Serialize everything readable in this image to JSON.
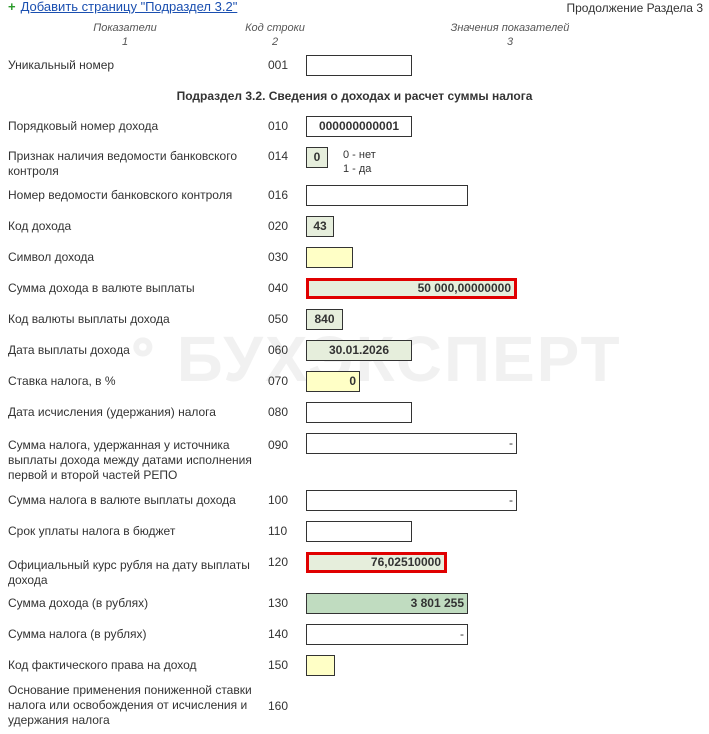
{
  "header": {
    "add_page_link": "Добавить страницу \"Подраздел 3.2\"",
    "continuation": "Продолжение Раздела 3"
  },
  "columns": [
    {
      "title": "Показатели",
      "num": "1"
    },
    {
      "title": "Код строки",
      "num": "2"
    },
    {
      "title": "Значения показателей",
      "num": "3"
    }
  ],
  "watermark": "ბ БУХЭКСПЕРТ",
  "unique": {
    "label": "Уникальный номер",
    "code": "001",
    "value": ""
  },
  "section_title": "Подраздел 3.2. Сведения о доходах и расчет суммы налога",
  "bank_hint": [
    "0 - нет",
    "1 - да"
  ],
  "rows": [
    {
      "label": "Порядковый номер дохода",
      "code": "010",
      "value": "000000000001",
      "fill": "white"
    },
    {
      "label": "Признак наличия ведомости банковского контроля",
      "code": "014",
      "value": "0",
      "fill": "green"
    },
    {
      "label": "Номер ведомости банковского контроля",
      "code": "016",
      "value": "",
      "fill": "white"
    },
    {
      "label": "Код дохода",
      "code": "020",
      "value": "43",
      "fill": "green"
    },
    {
      "label": "Символ дохода",
      "code": "030",
      "value": "",
      "fill": "yellow"
    },
    {
      "label": "Сумма дохода в валюте выплаты",
      "code": "040",
      "value": "50 000,00000000",
      "fill": "green",
      "highlighted": true
    },
    {
      "label": "Код валюты выплаты дохода",
      "code": "050",
      "value": "840",
      "fill": "green"
    },
    {
      "label": "Дата выплаты дохода",
      "code": "060",
      "value": "30.01.2026",
      "fill": "green"
    },
    {
      "label": "Ставка налога, в %",
      "code": "070",
      "value": "0",
      "fill": "yellow"
    },
    {
      "label": "Дата исчисления (удержания) налога",
      "code": "080",
      "value": "",
      "fill": "white"
    },
    {
      "label": "Сумма налога, удержанная у источника выплаты дохода между датами исполнения первой и второй частей РЕПО",
      "code": "090",
      "value": "-",
      "fill": "white"
    },
    {
      "label": "Сумма налога в валюте выплаты дохода",
      "code": "100",
      "value": "-",
      "fill": "white"
    },
    {
      "label": "Срок уплаты налога в бюджет",
      "code": "110",
      "value": "",
      "fill": "white"
    },
    {
      "label": "Официальный курс рубля на дату выплаты дохода",
      "code": "120",
      "value": "76,02510000",
      "fill": "green",
      "highlighted": true
    },
    {
      "label": "Сумма дохода (в рублях)",
      "code": "130",
      "value": "3 801 255",
      "fill": "dark-green"
    },
    {
      "label": "Сумма налога (в рублях)",
      "code": "140",
      "value": "-",
      "fill": "white"
    },
    {
      "label": "Код фактического права на доход",
      "code": "150",
      "value": "",
      "fill": "yellow"
    },
    {
      "label": "Основание применения пониженной ставки налога или освобождения от исчисления и удержания налога",
      "code": "160"
    }
  ],
  "colors": {
    "highlight": "#e00000",
    "green": "#e6eedc",
    "yellow": "#ffffc6",
    "dark_green": "#c0dcc0",
    "link": "#1a4fb0"
  }
}
